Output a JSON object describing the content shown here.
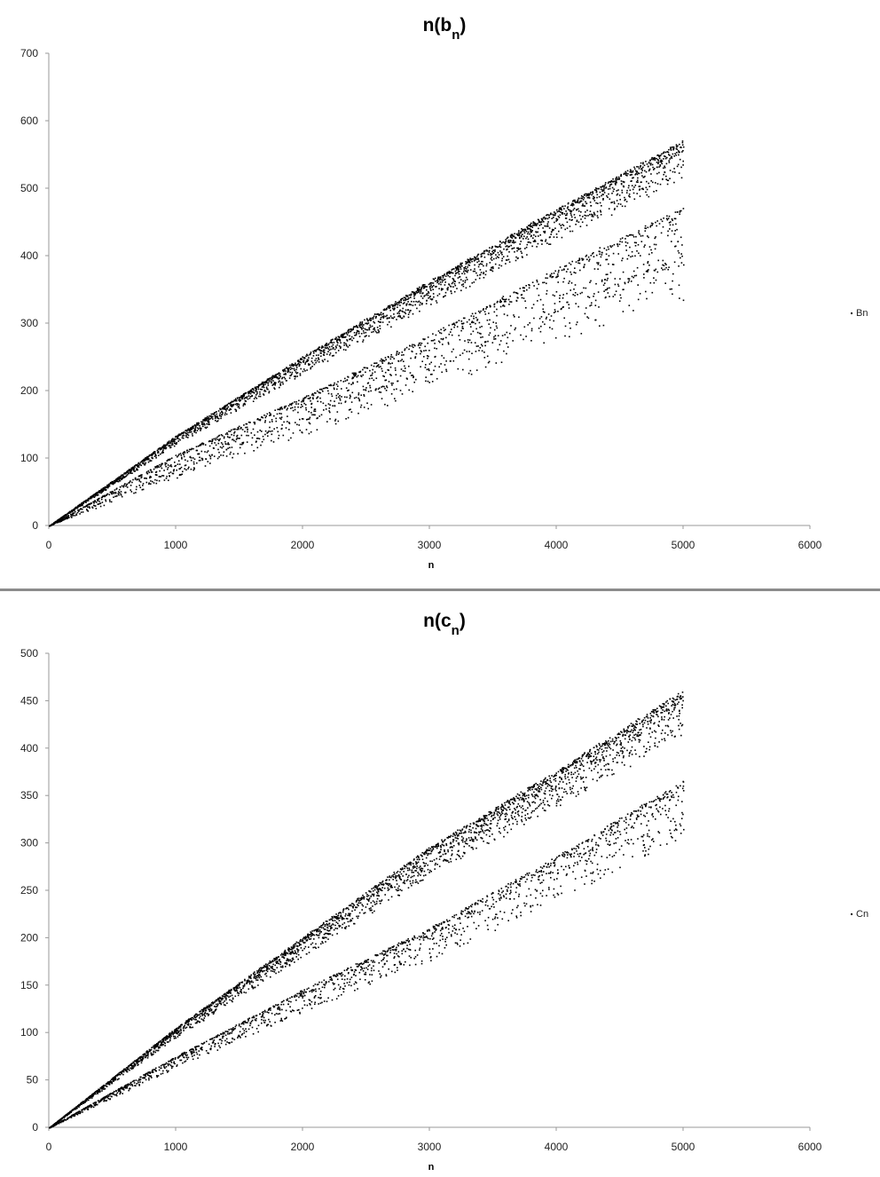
{
  "chart_data": [
    {
      "type": "scatter",
      "title": "n(b",
      "title_subscript": "n",
      "title_close": ")",
      "xlabel": "n",
      "ylabel": "",
      "xlim": [
        0,
        6000
      ],
      "ylim": [
        0,
        700
      ],
      "x_ticks": [
        "0",
        "1000",
        "2000",
        "3000",
        "4000",
        "5000",
        "6000"
      ],
      "y_ticks": [
        "0",
        "100",
        "200",
        "300",
        "400",
        "500",
        "600",
        "700"
      ],
      "grid": false,
      "legend_position": "right",
      "series": [
        {
          "name": "Bn",
          "n_range": [
            1,
            5000
          ],
          "marker": "dot",
          "color": "#000000",
          "bands": [
            {
              "label_x": [
                0,
                1000,
                2000,
                3000,
                4000,
                5000
              ],
              "approx_y": [
                0,
                133,
                250,
                362,
                468,
                570
              ]
            },
            {
              "label_x": [
                0,
                1000,
                2000,
                3000,
                4000,
                5000
              ],
              "approx_y": [
                0,
                105,
                190,
                282,
                380,
                470
              ]
            },
            {
              "label_x": [
                0,
                1000,
                2000,
                3000,
                4000,
                5000
              ],
              "approx_y": [
                0,
                85,
                160,
                235,
                320,
                400
              ]
            }
          ]
        }
      ]
    },
    {
      "type": "scatter",
      "title": "n(c",
      "title_subscript": "n",
      "title_close": ")",
      "xlabel": "n",
      "ylabel": "",
      "xlim": [
        0,
        6000
      ],
      "ylim": [
        0,
        500
      ],
      "x_ticks": [
        "0",
        "1000",
        "2000",
        "3000",
        "4000",
        "5000",
        "6000"
      ],
      "y_ticks": [
        "0",
        "50",
        "100",
        "150",
        "200",
        "250",
        "300",
        "350",
        "400",
        "450",
        "500"
      ],
      "grid": false,
      "legend_position": "right",
      "series": [
        {
          "name": "Cn",
          "n_range": [
            1,
            5000
          ],
          "marker": "dot",
          "color": "#000000",
          "bands": [
            {
              "label_x": [
                0,
                1000,
                2000,
                3000,
                4000,
                5000
              ],
              "approx_y": [
                0,
                105,
                200,
                295,
                375,
                460
              ]
            },
            {
              "label_x": [
                0,
                1000,
                2000,
                3000,
                4000,
                5000
              ],
              "approx_y": [
                0,
                75,
                145,
                210,
                285,
                365
              ]
            }
          ]
        }
      ]
    }
  ]
}
